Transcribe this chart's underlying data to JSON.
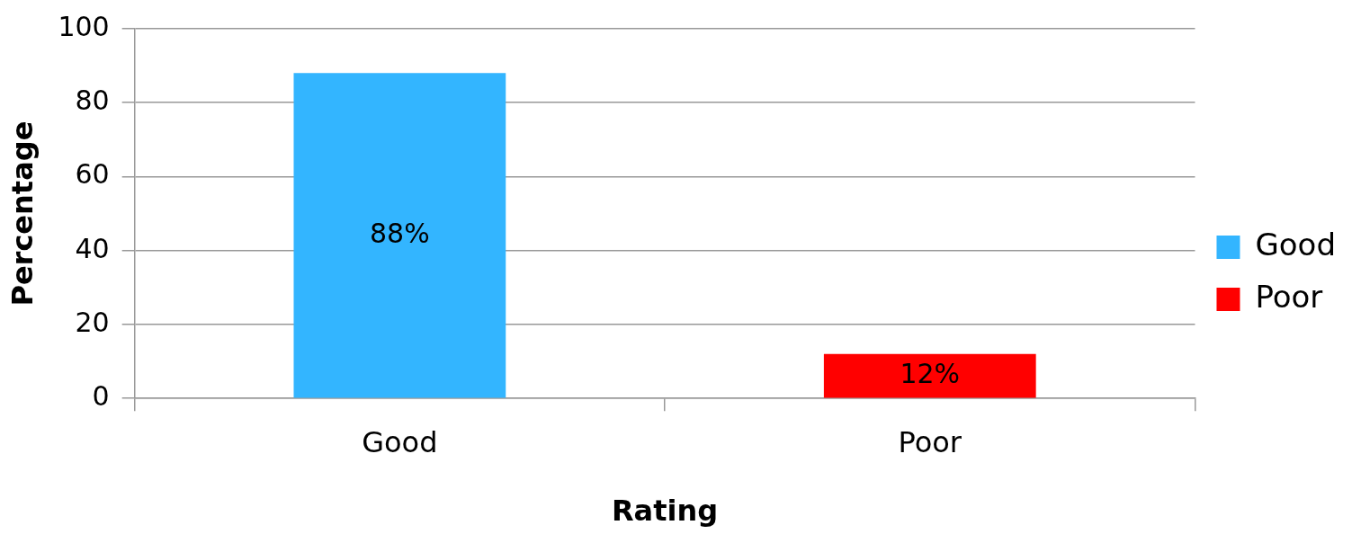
{
  "chart_data": {
    "type": "bar",
    "xlabel": "Rating",
    "ylabel": "Percentage",
    "categories": [
      "Good",
      "Poor"
    ],
    "series": [
      {
        "name": "Good",
        "color": "#33b5ff",
        "values": [
          88,
          null
        ],
        "value_labels": [
          "88%",
          null
        ]
      },
      {
        "name": "Poor",
        "color": "#ff0000",
        "values": [
          null,
          12
        ],
        "value_labels": [
          null,
          "12%"
        ]
      }
    ],
    "ylim": [
      0,
      100
    ],
    "yticks": [
      0,
      20,
      40,
      60,
      80,
      100
    ],
    "grid": "y",
    "legend": "right"
  }
}
